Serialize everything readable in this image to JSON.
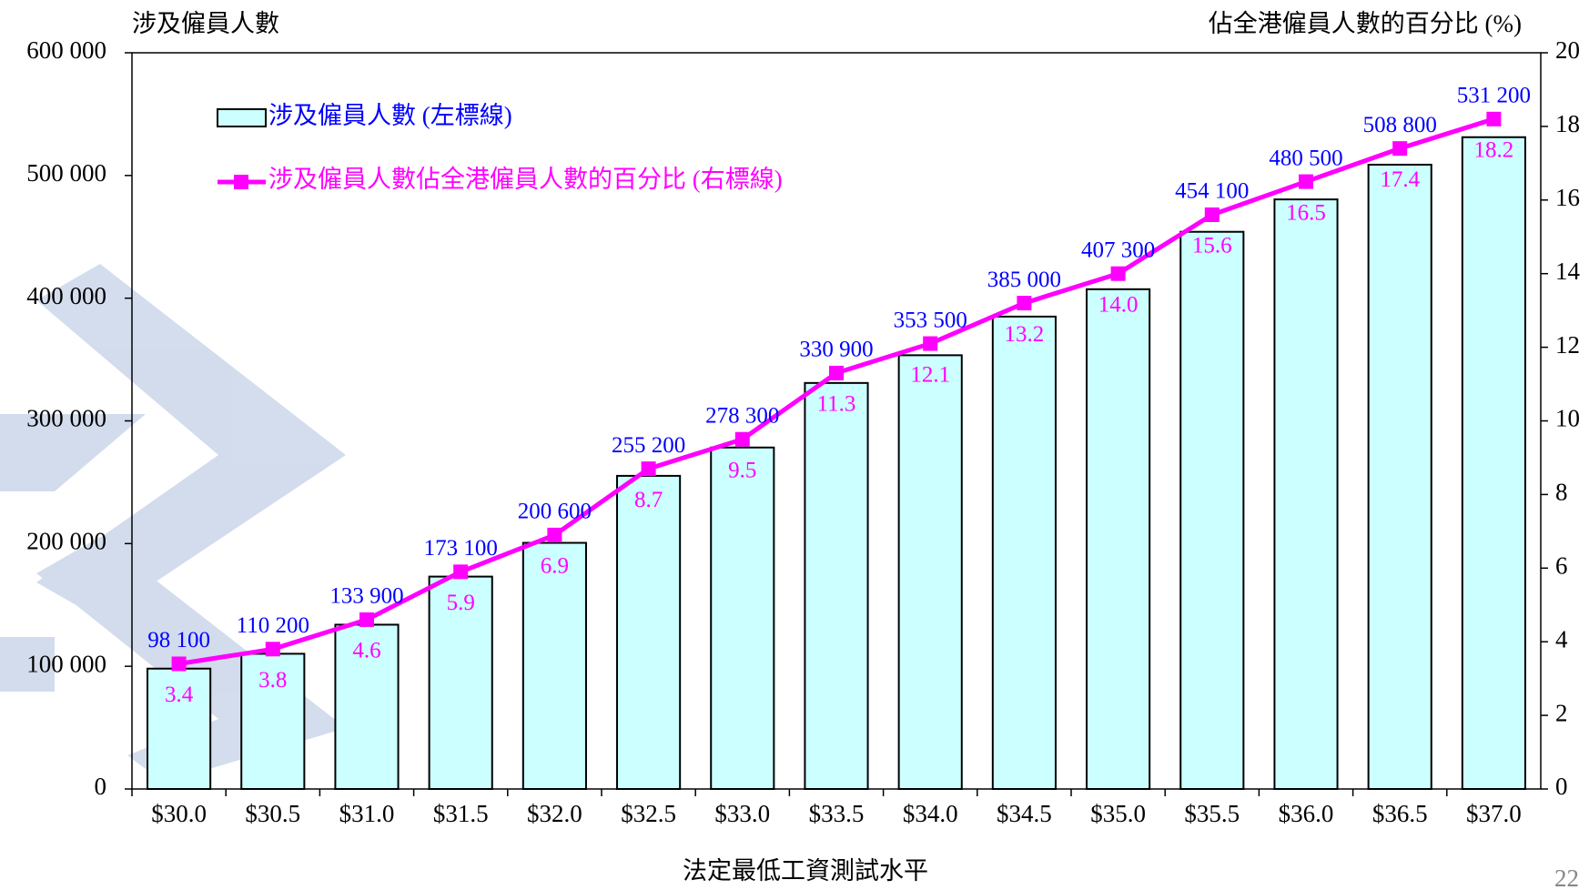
{
  "chart_data": {
    "type": "bar-line",
    "y_axis_title": "涉及僱員人數",
    "y2_axis_title": "佔全港僱員人數的百分比 (%)",
    "x_axis_title": "法定最低工資測試水平",
    "categories": [
      "$30.0",
      "$30.5",
      "$31.0",
      "$31.5",
      "$32.0",
      "$32.5",
      "$33.0",
      "$33.5",
      "$34.0",
      "$34.5",
      "$35.0",
      "$35.5",
      "$36.0",
      "$36.5",
      "$37.0"
    ],
    "series": [
      {
        "name": "涉及僱員人數 (左標線)",
        "type": "bar",
        "color": "#ccffff",
        "label_color": "#0000ff",
        "values": [
          98100,
          110200,
          133900,
          173100,
          200600,
          255200,
          278300,
          330900,
          353500,
          385000,
          407300,
          454100,
          480500,
          508800,
          531200
        ],
        "value_labels": [
          "98 100",
          "110 200",
          "133 900",
          "173 100",
          "200 600",
          "255 200",
          "278 300",
          "330 900",
          "353 500",
          "385 000",
          "407 300",
          "454 100",
          "480 500",
          "508 800",
          "531 200"
        ]
      },
      {
        "name": "涉及僱員人數佔全港僱員人數的百分比 (右標線)",
        "type": "line",
        "axis": "y2",
        "color": "#ff00ff",
        "label_color": "#ff00ff",
        "values": [
          3.4,
          3.8,
          4.6,
          5.9,
          6.9,
          8.7,
          9.5,
          11.3,
          12.1,
          13.2,
          14.0,
          15.6,
          16.5,
          17.4,
          18.2
        ],
        "value_labels": [
          "3.4",
          "3.8",
          "4.6",
          "5.9",
          "6.9",
          "8.7",
          "9.5",
          "11.3",
          "12.1",
          "13.2",
          "14.0",
          "15.6",
          "16.5",
          "17.4",
          "18.2"
        ]
      }
    ],
    "ylim": [
      0,
      600000
    ],
    "yticks": [
      0,
      {
        "value": 100000,
        "label": "100 000"
      },
      {
        "value": 200000,
        "label": "200 000"
      },
      {
        "value": 300000,
        "label": "300 000"
      },
      {
        "value": 400000,
        "label": "400 000"
      },
      {
        "value": 500000,
        "label": "500 000"
      },
      {
        "value": 600000,
        "label": "600 000"
      }
    ],
    "y2lim": [
      0,
      20
    ],
    "y2ticks": [
      0,
      2,
      4,
      6,
      8,
      10,
      12,
      14,
      16,
      18,
      20
    ],
    "legend": "upper-left"
  },
  "page_number": "22"
}
